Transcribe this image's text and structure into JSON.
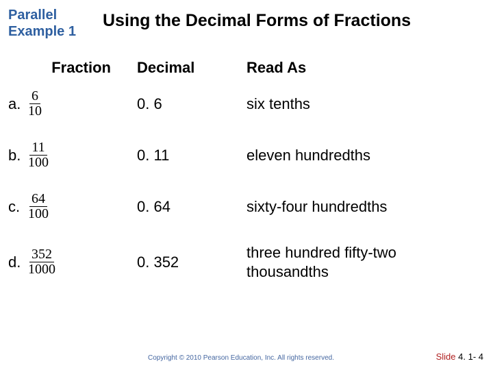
{
  "header": {
    "example_label_l1": "Parallel",
    "example_label_l2": "Example 1",
    "title": "Using the Decimal Forms of Fractions"
  },
  "columns": {
    "fraction": "Fraction",
    "decimal": "Decimal",
    "read_as": "Read As"
  },
  "rows": [
    {
      "letter": "a.",
      "num": "6",
      "den": "10",
      "decimal": "0. 6",
      "read": "six tenths"
    },
    {
      "letter": "b.",
      "num": "11",
      "den": "100",
      "decimal": "0. 11",
      "read": "eleven hundredths"
    },
    {
      "letter": "c.",
      "num": "64",
      "den": "100",
      "decimal": "0. 64",
      "read": "sixty-four hundredths"
    },
    {
      "letter": "d.",
      "num": "352",
      "den": "1000",
      "decimal": "0. 352",
      "read": "three hundred fifty-two thousandths"
    }
  ],
  "footer": {
    "copyright": "Copyright © 2010 Pearson Education, Inc.  All rights reserved.",
    "slide_prefix": "Slide ",
    "slide_number": "4. 1- 4"
  },
  "style": {
    "accent_color": "#2e5fa0",
    "text_color": "#000000",
    "copyright_color": "#4466a0",
    "slide_prefix_color": "#b02020",
    "background": "#ffffff"
  }
}
